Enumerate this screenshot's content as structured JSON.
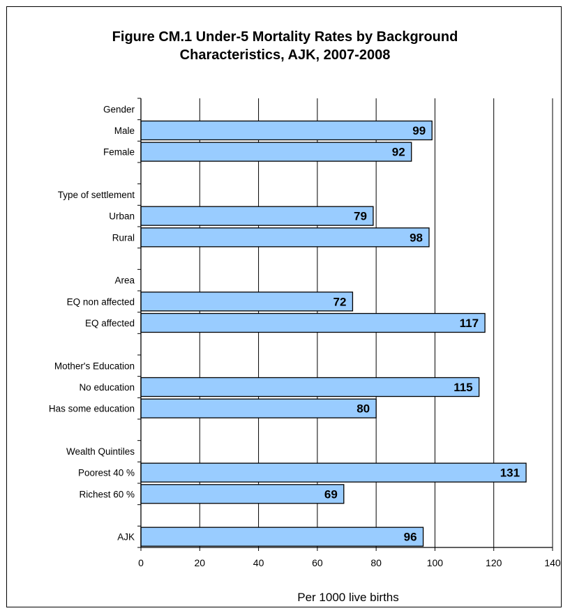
{
  "chart_data": {
    "type": "bar",
    "orientation": "horizontal",
    "title": "Figure CM.1 Under-5 Mortality Rates by Background\nCharacteristics, AJK, 2007-2008",
    "xlabel": "Per 1000 live births",
    "ylabel": "",
    "xlim": [
      0,
      140
    ],
    "xticks": [
      "0",
      "20",
      "40",
      "60",
      "80",
      "100",
      "120",
      "140"
    ],
    "grid": "vertical",
    "legend": "none",
    "bar_color": "#99CCFF",
    "rows": [
      {
        "label": "Gender",
        "kind": "header"
      },
      {
        "label": "Male",
        "value": 99
      },
      {
        "label": "Female",
        "value": 92
      },
      {
        "label": "",
        "kind": "spacer"
      },
      {
        "label": "Type of settlement",
        "kind": "header"
      },
      {
        "label": "Urban",
        "value": 79
      },
      {
        "label": "Rural",
        "value": 98
      },
      {
        "label": "",
        "kind": "spacer"
      },
      {
        "label": "Area",
        "kind": "header"
      },
      {
        "label": "EQ non affected",
        "value": 72
      },
      {
        "label": "EQ affected",
        "value": 117
      },
      {
        "label": "",
        "kind": "spacer"
      },
      {
        "label": "Mother's Education",
        "kind": "header"
      },
      {
        "label": "No education",
        "value": 115
      },
      {
        "label": "Has some education",
        "value": 80
      },
      {
        "label": "",
        "kind": "spacer"
      },
      {
        "label": "Wealth Quintiles",
        "kind": "header"
      },
      {
        "label": "Poorest 40 %",
        "value": 131
      },
      {
        "label": "Richest 60 %",
        "value": 69
      },
      {
        "label": "",
        "kind": "spacer"
      },
      {
        "label": "AJK",
        "value": 96
      }
    ]
  }
}
